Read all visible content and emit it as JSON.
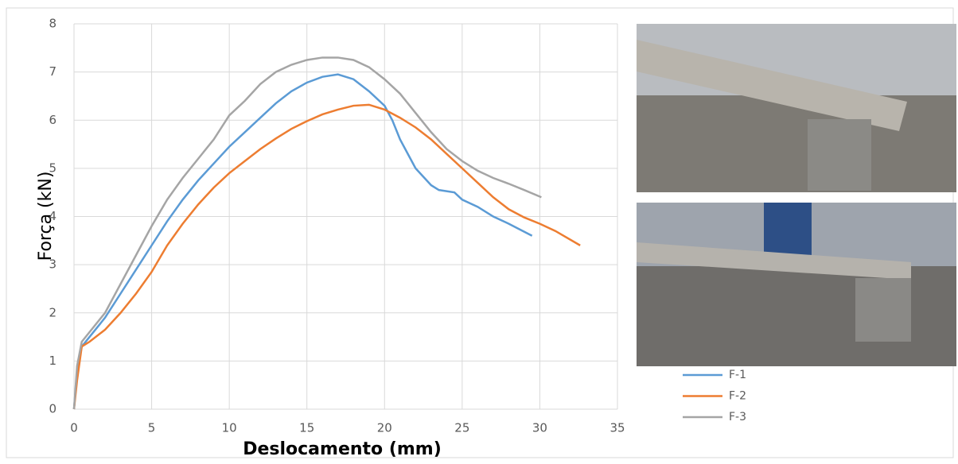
{
  "chart_data": {
    "type": "line",
    "x_label": "Deslocamento (mm)",
    "y_label": "Força (kN)",
    "xlim": [
      0,
      35
    ],
    "xticks": [
      0,
      5,
      10,
      15,
      20,
      25,
      30,
      35
    ],
    "ylim": [
      0,
      8
    ],
    "yticks": [
      0,
      1,
      2,
      3,
      4,
      5,
      6,
      7,
      8
    ],
    "grid": true,
    "series": [
      {
        "name": "F-1",
        "color": "#5b9bd5",
        "x": [
          0,
          0.2,
          0.5,
          1,
          2,
          3,
          4,
          5,
          6,
          7,
          8,
          9,
          10,
          11,
          12,
          13,
          14,
          15,
          16,
          17,
          18,
          19,
          20,
          20.5,
          21,
          22,
          23,
          23.5,
          24.5,
          25,
          26,
          27,
          28,
          29.5
        ],
        "values": [
          0,
          0.8,
          1.3,
          1.5,
          1.9,
          2.4,
          2.9,
          3.4,
          3.9,
          4.35,
          4.75,
          5.1,
          5.45,
          5.75,
          6.05,
          6.35,
          6.6,
          6.78,
          6.9,
          6.95,
          6.85,
          6.6,
          6.3,
          6.0,
          5.6,
          5.0,
          4.65,
          4.55,
          4.5,
          4.35,
          4.2,
          4.0,
          3.85,
          3.6
        ]
      },
      {
        "name": "F-2",
        "color": "#ed7d31",
        "x": [
          0,
          0.2,
          0.5,
          1,
          2,
          3,
          4,
          5,
          6,
          7,
          8,
          9,
          10,
          11,
          12,
          13,
          14,
          15,
          16,
          17,
          18,
          19,
          20,
          21,
          22,
          23,
          24,
          25,
          26,
          27,
          28,
          29,
          30,
          31,
          32.6
        ],
        "values": [
          0,
          0.6,
          1.3,
          1.4,
          1.65,
          2.0,
          2.4,
          2.85,
          3.4,
          3.85,
          4.25,
          4.6,
          4.9,
          5.15,
          5.4,
          5.62,
          5.82,
          5.98,
          6.12,
          6.22,
          6.3,
          6.32,
          6.22,
          6.05,
          5.85,
          5.6,
          5.3,
          5.0,
          4.7,
          4.4,
          4.15,
          3.98,
          3.85,
          3.7,
          3.4
        ]
      },
      {
        "name": "F-3",
        "color": "#a5a5a5",
        "x": [
          0,
          0.2,
          0.5,
          1,
          2,
          3,
          4,
          5,
          6,
          7,
          8,
          9,
          10,
          11,
          12,
          13,
          14,
          15,
          16,
          17,
          18,
          19,
          20,
          21,
          22,
          23,
          24,
          25,
          26,
          27,
          28,
          29,
          30.1
        ],
        "values": [
          0,
          0.9,
          1.4,
          1.6,
          2.0,
          2.6,
          3.2,
          3.8,
          4.35,
          4.8,
          5.2,
          5.6,
          6.1,
          6.4,
          6.75,
          7.0,
          7.15,
          7.25,
          7.3,
          7.3,
          7.25,
          7.1,
          6.85,
          6.55,
          6.15,
          5.75,
          5.4,
          5.15,
          4.95,
          4.8,
          4.68,
          4.55,
          4.4
        ]
      }
    ]
  }
}
